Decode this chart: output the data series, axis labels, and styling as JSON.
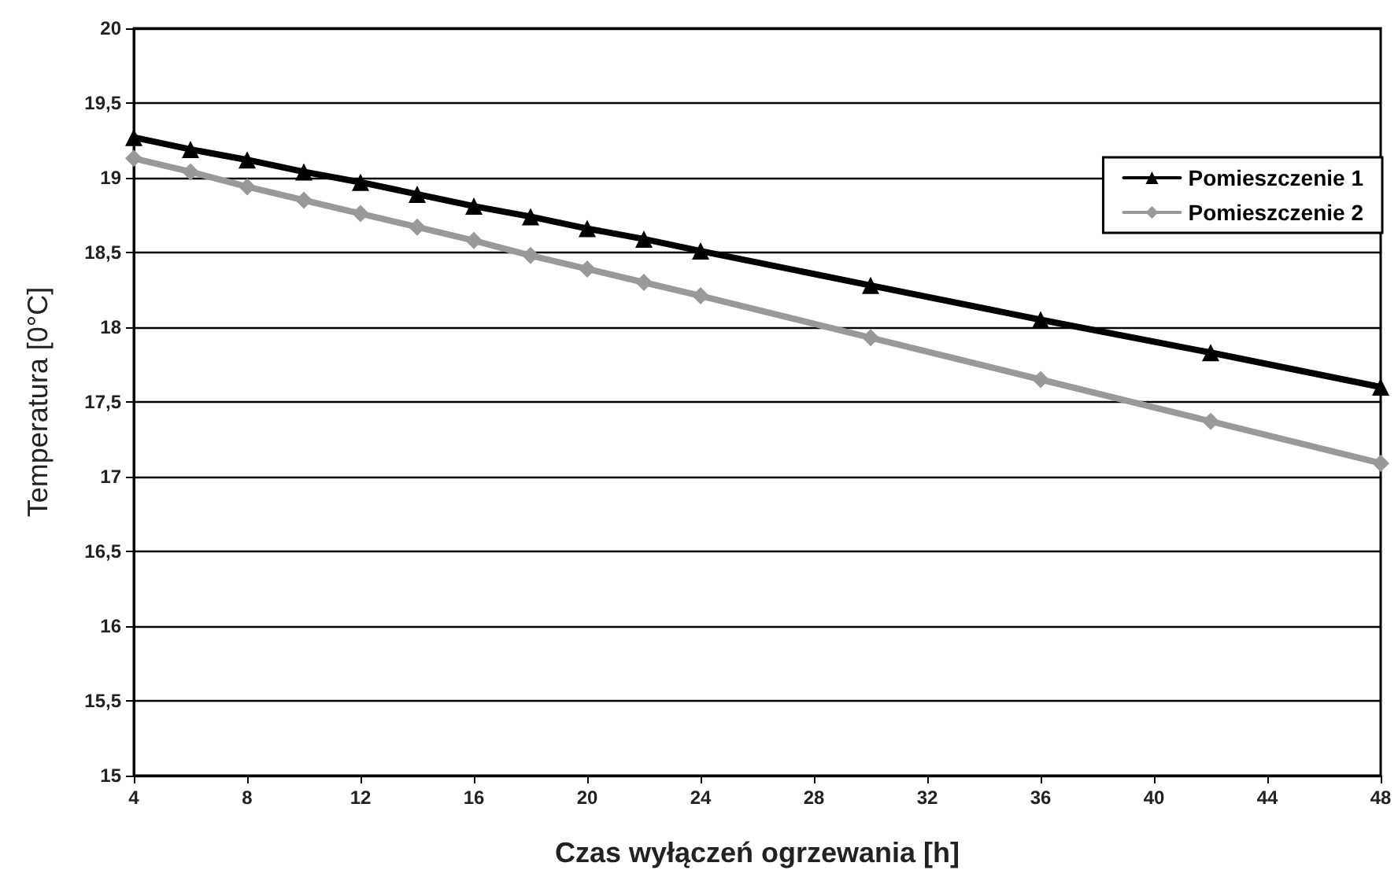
{
  "chart_data": {
    "type": "line",
    "xlabel": "Czas wyłączeń ogrzewania [h]",
    "ylabel": "Temperatura [0°C]",
    "x": [
      4,
      6,
      8,
      10,
      12,
      14,
      16,
      18,
      20,
      22,
      24,
      30,
      36,
      42,
      48
    ],
    "series": [
      {
        "name": "Pomieszczenie 1",
        "color": "#000000",
        "marker": "triangle",
        "values": [
          19.27,
          19.19,
          19.12,
          19.04,
          18.97,
          18.89,
          18.81,
          18.74,
          18.66,
          18.59,
          18.51,
          18.28,
          18.05,
          17.83,
          17.6
        ]
      },
      {
        "name": "Pomieszczenie 2",
        "color": "#999999",
        "marker": "diamond",
        "values": [
          19.13,
          19.04,
          18.94,
          18.85,
          18.76,
          18.67,
          18.58,
          18.48,
          18.39,
          18.3,
          18.21,
          17.93,
          17.65,
          17.37,
          17.09
        ]
      }
    ],
    "xlim": [
      4,
      48
    ],
    "xticks": [
      4,
      8,
      12,
      16,
      20,
      24,
      28,
      32,
      36,
      40,
      44,
      48
    ],
    "ylim": [
      15,
      20
    ],
    "yticks": [
      15,
      {
        "value": 15.5,
        "label": "15,5"
      },
      16,
      {
        "value": 16.5,
        "label": "16,5"
      },
      17,
      {
        "value": 17.5,
        "label": "17,5"
      },
      18,
      {
        "value": 18.5,
        "label": "18,5"
      },
      19,
      {
        "value": 19.5,
        "label": "19,5"
      },
      20
    ],
    "grid": "y",
    "legend": "right",
    "line_style": "solid"
  }
}
